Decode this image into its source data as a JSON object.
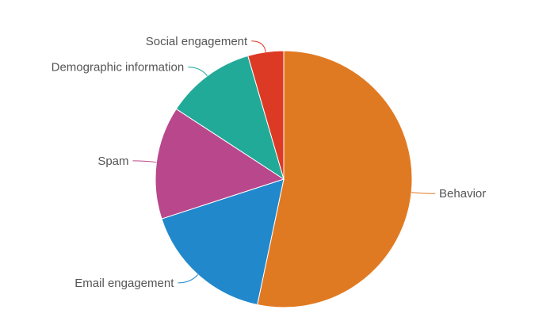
{
  "chart_data": {
    "type": "pie",
    "slices": [
      {
        "label": "Behavior",
        "value": 53.3,
        "color": "#E07A22"
      },
      {
        "label": "Email engagement",
        "value": 16.7,
        "color": "#2288CC"
      },
      {
        "label": "Spam",
        "value": 14.2,
        "color": "#B9478C"
      },
      {
        "label": "Demographic information",
        "value": 11.3,
        "color": "#22AA99"
      },
      {
        "label": "Social engagement",
        "value": 4.5,
        "color": "#DD3A26"
      }
    ]
  }
}
